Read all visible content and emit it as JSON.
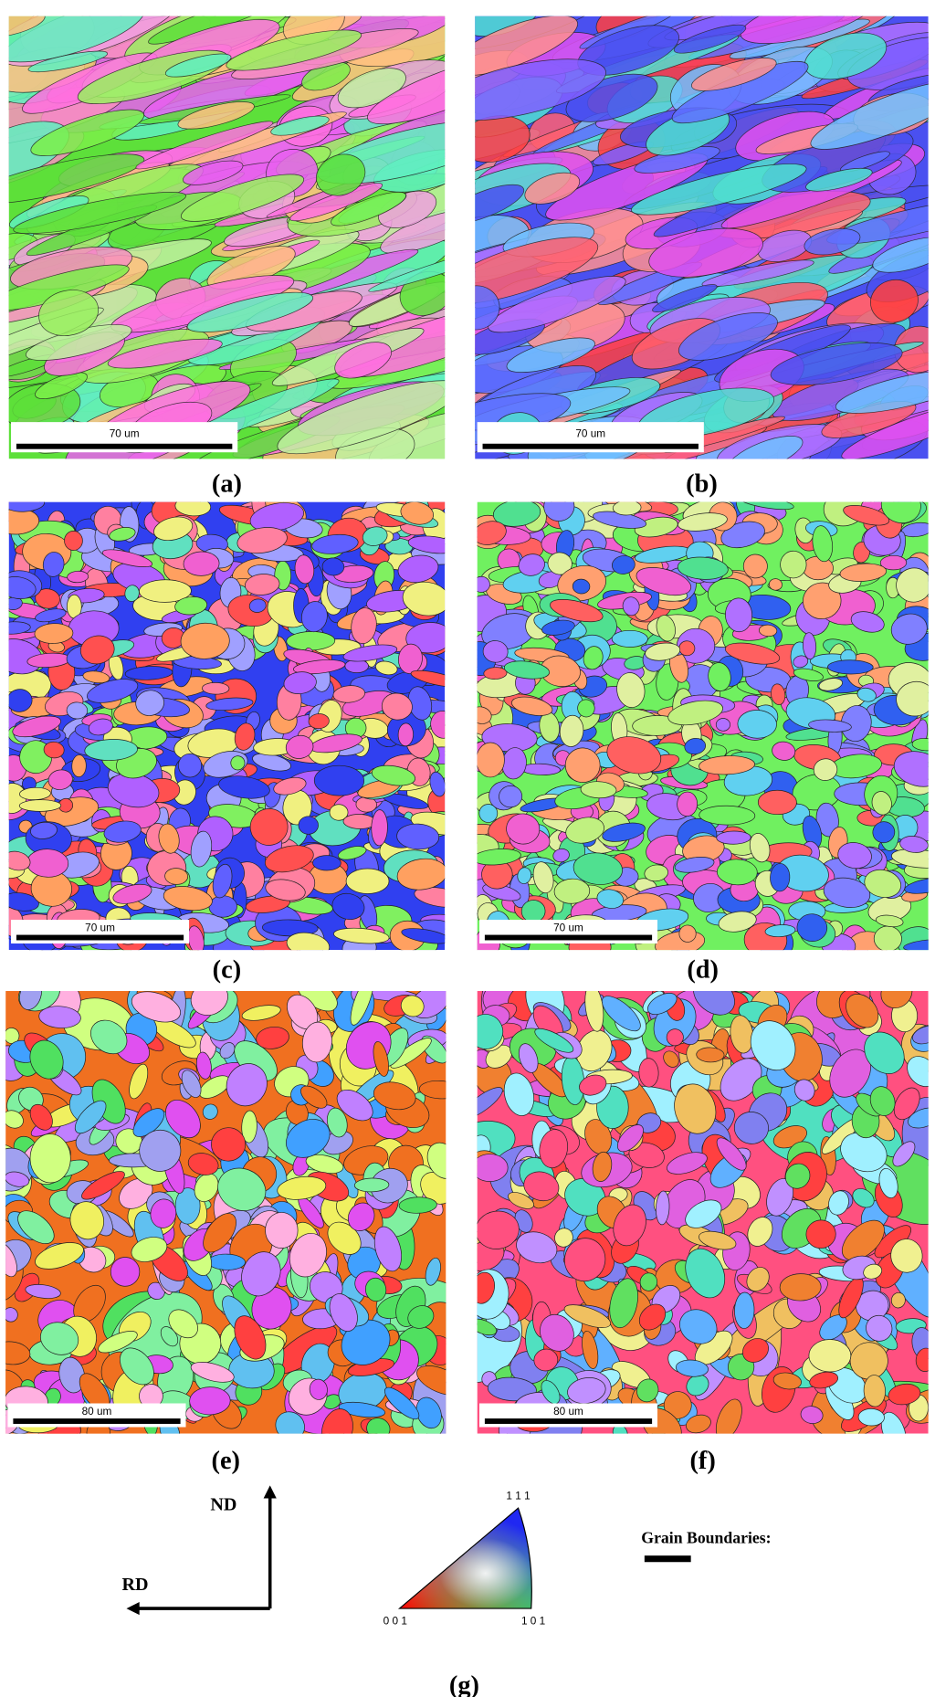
{
  "panels": [
    {
      "label": "(a)",
      "scale_bar": "70 um"
    },
    {
      "label": "(b)",
      "scale_bar": "70 um"
    },
    {
      "label": "(c)",
      "scale_bar": "70 um"
    },
    {
      "label": "(d)",
      "scale_bar": "70 um"
    },
    {
      "label": "(e)",
      "scale_bar": "80 um"
    },
    {
      "label": "(f)",
      "scale_bar": "80 um"
    }
  ],
  "legend": {
    "nd": "ND",
    "rd": "RD",
    "ipf_top": "1 1 1",
    "ipf_left": "0 0 1",
    "ipf_right": "1 0 1",
    "grain_boundaries": "Grain Boundaries:",
    "label": "(g)"
  }
}
